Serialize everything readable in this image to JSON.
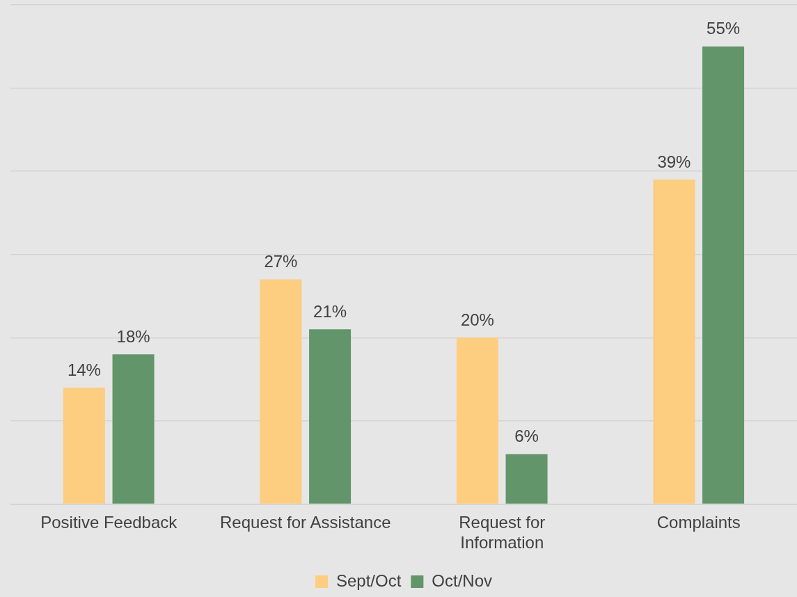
{
  "chart_data": {
    "type": "bar",
    "categories": [
      "Positive Feedback",
      "Request for Assistance",
      "Request for Information",
      "Complaints"
    ],
    "series": [
      {
        "name": "Sept/Oct",
        "color": "#fdcd80",
        "values": [
          14,
          27,
          20,
          39
        ],
        "value_labels": [
          "14%",
          "27%",
          "20%",
          "39%"
        ]
      },
      {
        "name": "Oct/Nov",
        "color": "#62956a",
        "values": [
          18,
          21,
          6,
          55
        ],
        "value_labels": [
          "18%",
          "21%",
          "6%",
          "55%"
        ]
      }
    ],
    "ylim": [
      0,
      60
    ],
    "yticks": [
      {
        "value": 0,
        "label": null
      },
      {
        "value": 10,
        "label": null
      },
      {
        "value": 20,
        "label": null
      },
      {
        "value": 30,
        "label": null
      },
      {
        "value": 40,
        "label": null
      },
      {
        "value": 50,
        "label": null
      },
      {
        "value": 60,
        "label": null
      }
    ],
    "grid": "y",
    "tick_labels": "x",
    "legend": "bottom"
  }
}
